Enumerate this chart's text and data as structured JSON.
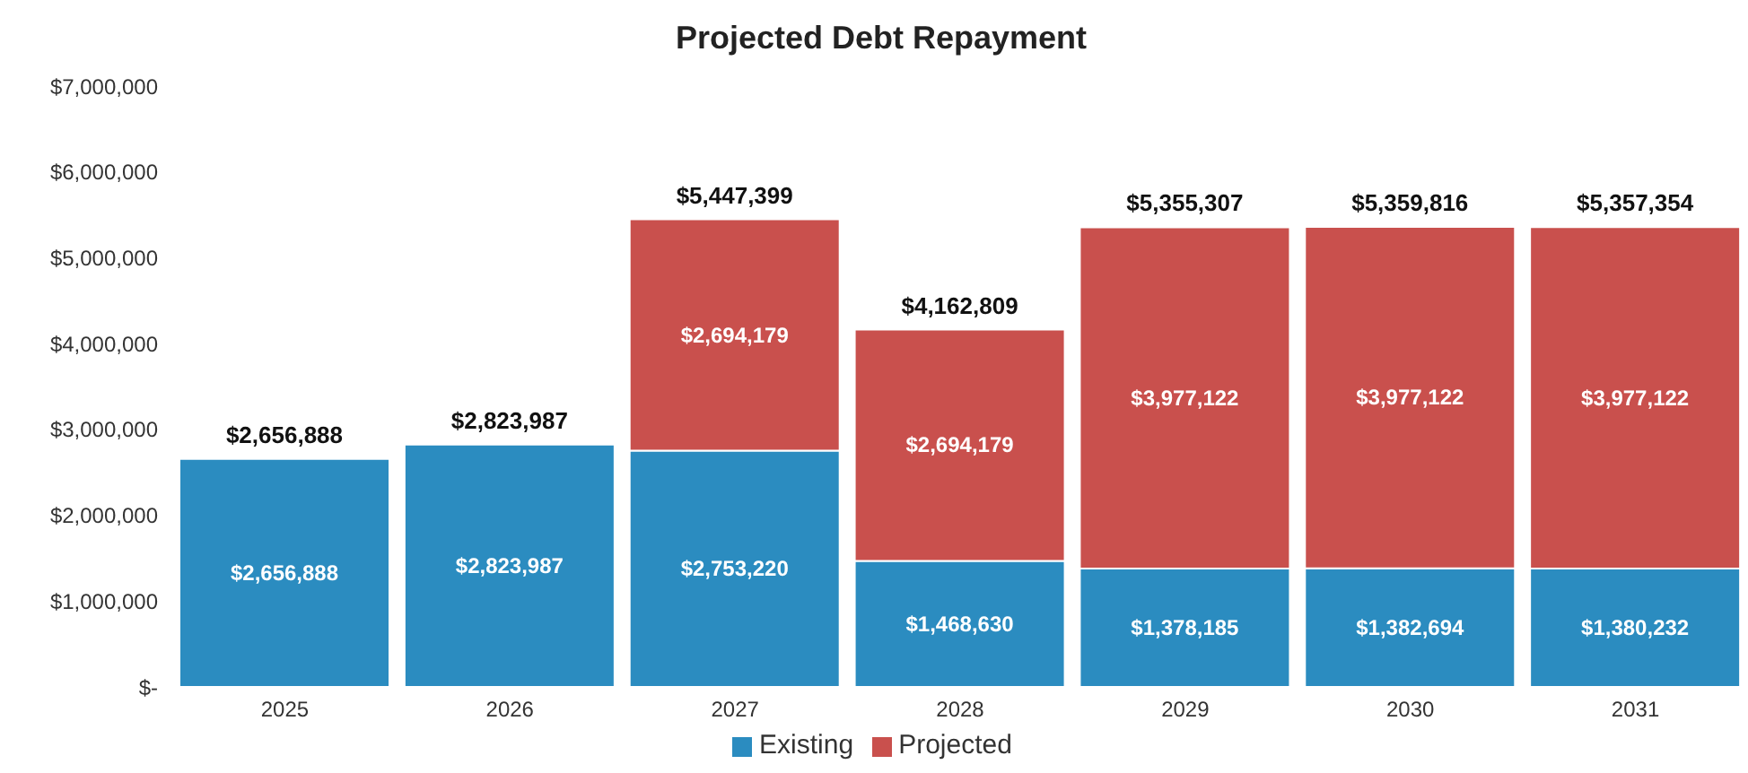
{
  "chart_data": {
    "type": "bar",
    "title": "Projected Debt Repayment",
    "stacked": true,
    "categories": [
      "2025",
      "2026",
      "2027",
      "2028",
      "2029",
      "2030",
      "2031"
    ],
    "series": [
      {
        "name": "Existing",
        "color": "#2b8cc0",
        "values": [
          2656888,
          2823987,
          2753220,
          1468630,
          1378185,
          1382694,
          1380232
        ],
        "value_labels": [
          "$2,656,888",
          "$2,823,987",
          "$2,753,220",
          "$1,468,630",
          "$1,378,185",
          "$1,382,694",
          "$1,380,232"
        ]
      },
      {
        "name": "Projected",
        "color": "#c9504d",
        "values": [
          null,
          null,
          2694179,
          2694179,
          3977122,
          3977122,
          3977122
        ],
        "value_labels": [
          null,
          null,
          "$2,694,179",
          "$2,694,179",
          "$3,977,122",
          "$3,977,122",
          "$3,977,122"
        ]
      }
    ],
    "totals": [
      "$2,656,888",
      "$2,823,987",
      "$5,447,399",
      "$4,162,809",
      "$5,355,307",
      "$5,359,816",
      "$5,357,354"
    ],
    "ylim": [
      0,
      7000000
    ],
    "yticks": [
      {
        "value": 0,
        "label": "$-"
      },
      {
        "value": 1000000,
        "label": "$1,000,000"
      },
      {
        "value": 2000000,
        "label": "$2,000,000"
      },
      {
        "value": 3000000,
        "label": "$3,000,000"
      },
      {
        "value": 4000000,
        "label": "$4,000,000"
      },
      {
        "value": 5000000,
        "label": "$5,000,000"
      },
      {
        "value": 6000000,
        "label": "$6,000,000"
      },
      {
        "value": 7000000,
        "label": "$7,000,000"
      }
    ],
    "grid": false,
    "legend": "bottom"
  }
}
